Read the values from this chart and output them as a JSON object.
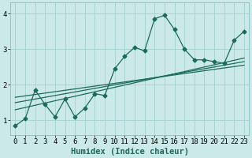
{
  "title": "",
  "xlabel": "Humidex (Indice chaleur)",
  "ylabel": "",
  "background_color": "#cce9e9",
  "grid_color": "#aad4d4",
  "line_color": "#1a6b5a",
  "xlim": [
    -0.5,
    23.5
  ],
  "ylim": [
    0.6,
    4.3
  ],
  "yticks": [
    1,
    2,
    3,
    4
  ],
  "xticks": [
    0,
    1,
    2,
    3,
    4,
    5,
    6,
    7,
    8,
    9,
    10,
    11,
    12,
    13,
    14,
    15,
    16,
    17,
    18,
    19,
    20,
    21,
    22,
    23
  ],
  "series1_x": [
    0,
    1,
    2,
    3,
    4,
    5,
    6,
    7,
    8,
    9,
    10,
    11,
    12,
    13,
    14,
    15,
    16,
    17,
    18,
    19,
    20,
    21,
    22,
    23
  ],
  "series1_y": [
    0.85,
    1.05,
    1.85,
    1.45,
    1.1,
    1.6,
    1.1,
    1.35,
    1.75,
    1.7,
    2.45,
    2.8,
    3.05,
    2.95,
    3.85,
    3.95,
    3.55,
    3.0,
    2.7,
    2.7,
    2.65,
    2.6,
    3.25,
    3.5
  ],
  "series2_x": [
    0,
    23
  ],
  "series2_y": [
    1.3,
    2.75
  ],
  "series3_x": [
    0,
    23
  ],
  "series3_y": [
    1.5,
    2.65
  ],
  "series4_x": [
    0,
    23
  ],
  "series4_y": [
    1.65,
    2.55
  ],
  "fontsize_xlabel": 7.5,
  "fontsize_ticks": 6.5
}
